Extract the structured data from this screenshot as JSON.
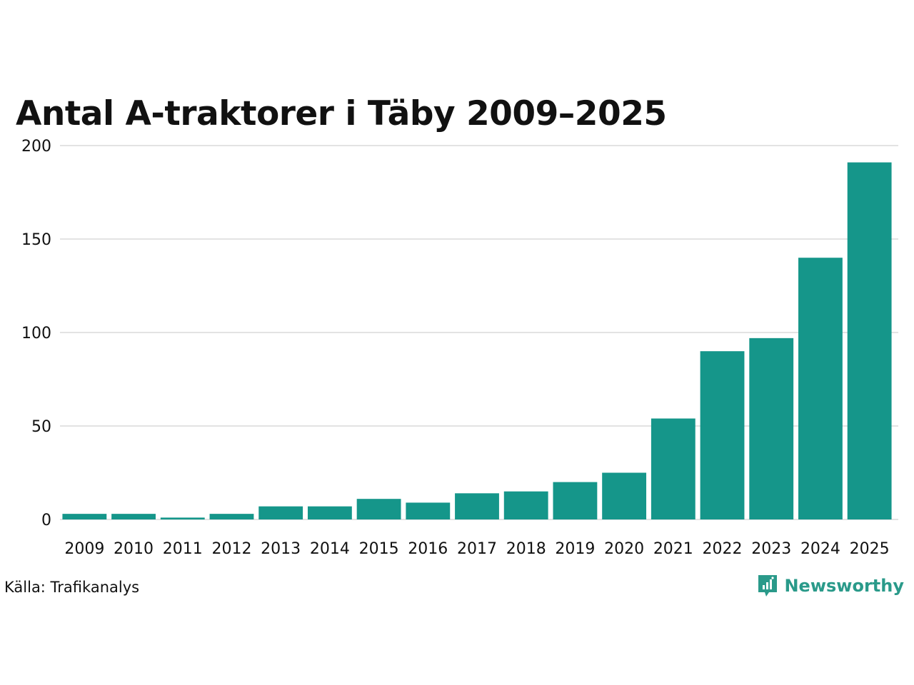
{
  "chart_data": {
    "type": "bar",
    "title": "Antal A-traktorer i Täby 2009–2025",
    "xlabel": "",
    "ylabel": "",
    "categories": [
      "2009",
      "2010",
      "2011",
      "2012",
      "2013",
      "2014",
      "2015",
      "2016",
      "2017",
      "2018",
      "2019",
      "2020",
      "2021",
      "2022",
      "2023",
      "2024",
      "2025"
    ],
    "values": [
      3,
      3,
      1,
      3,
      7,
      7,
      11,
      9,
      14,
      15,
      20,
      25,
      54,
      90,
      97,
      140,
      191
    ],
    "ylim": [
      0,
      200
    ],
    "yticks": [
      "0",
      "50",
      "100",
      "150",
      "200"
    ],
    "grid": true,
    "legend": "none",
    "bar_color": "#15968a",
    "grid_color": "#e3e3e3"
  },
  "footer": {
    "source": "Källa: Trafikanalys",
    "brand": "Newsworthy",
    "brand_icon": "newsworthy-logo-icon",
    "brand_color": "#2a9a8a"
  }
}
